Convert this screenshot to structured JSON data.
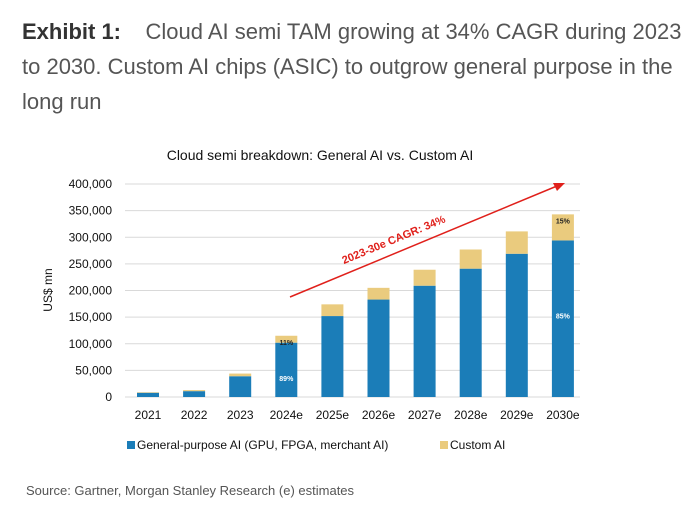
{
  "exhibit": {
    "label": "Exhibit 1:",
    "title": "Cloud AI semi TAM growing at 34% CAGR during 2023 to 2030. Custom AI chips (ASIC) to outgrow general purpose in the long run"
  },
  "source": "Source: Gartner, Morgan Stanley Research (e) estimates",
  "chart_data": {
    "type": "bar",
    "stacked": true,
    "title": "Cloud semi breakdown: General AI vs. Custom AI",
    "xlabel": "",
    "ylabel": "US$ mn",
    "ylim": [
      0,
      400000
    ],
    "yticks": [
      "0",
      "50,000",
      "100,000",
      "150,000",
      "200,000",
      "250,000",
      "300,000",
      "350,000",
      "400,000"
    ],
    "categories": [
      "2021",
      "2022",
      "2023",
      "2024e",
      "2025e",
      "2026e",
      "2027e",
      "2028e",
      "2029e",
      "2030e"
    ],
    "series": [
      {
        "name": "General-purpose AI (GPU, FPGA, merchant AI)",
        "color": "#1B7DB8",
        "values": [
          8000,
          11000,
          39000,
          102000,
          152000,
          183000,
          209000,
          241000,
          269000,
          294000
        ]
      },
      {
        "name": "Custom AI",
        "color": "#EACB7E",
        "values": [
          1000,
          2000,
          5000,
          13000,
          22000,
          22000,
          30000,
          36000,
          42000,
          49000
        ]
      }
    ],
    "data_labels": [
      {
        "category": "2024e",
        "series": "General-purpose AI (GPU, FPGA, merchant AI)",
        "text": "89%"
      },
      {
        "category": "2024e",
        "series": "Custom AI",
        "text": "11%"
      },
      {
        "category": "2030e",
        "series": "General-purpose AI (GPU, FPGA, merchant AI)",
        "text": "85%"
      },
      {
        "category": "2030e",
        "series": "Custom AI",
        "text": "15%"
      }
    ],
    "annotation": {
      "text": "2023-30e CAGR: 34%",
      "color": "#E0201B"
    },
    "grid": true,
    "legend": "bottom"
  }
}
